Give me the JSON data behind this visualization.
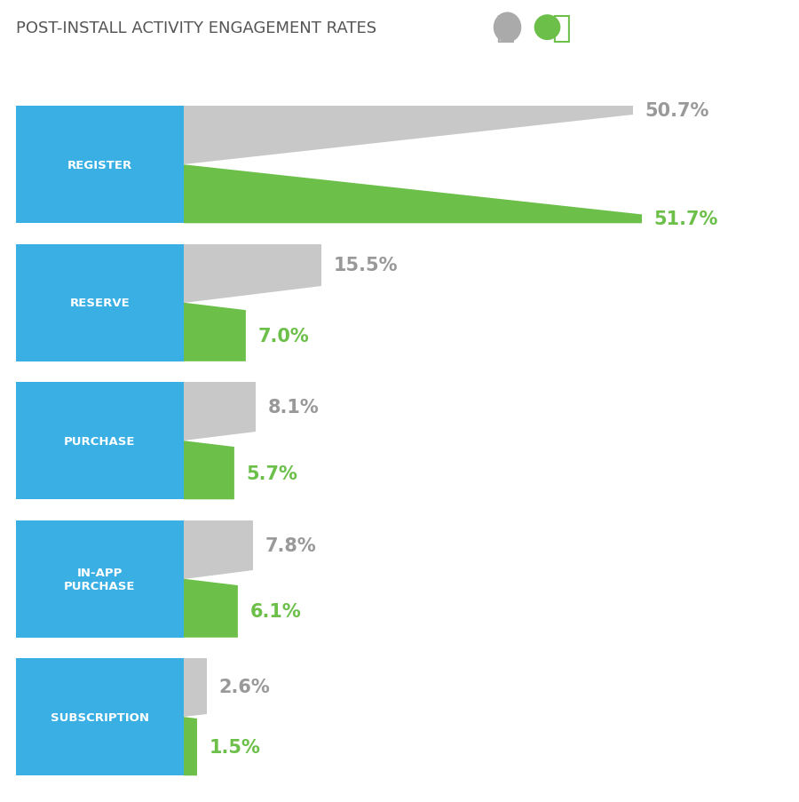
{
  "title": "POST-INSTALL ACTIVITY ENGAGEMENT RATES",
  "categories": [
    "REGISTER",
    "RESERVE",
    "PURCHASE",
    "IN-APP\nPURCHASE",
    "SUBSCRIPTION"
  ],
  "ios_values": [
    50.7,
    15.5,
    8.1,
    7.8,
    2.6
  ],
  "android_values": [
    51.7,
    7.0,
    5.7,
    6.1,
    1.5
  ],
  "ios_labels": [
    "50.7%",
    "15.5%",
    "8.1%",
    "7.8%",
    "2.6%"
  ],
  "android_labels": [
    "51.7%",
    "7.0%",
    "5.7%",
    "6.1%",
    "1.5%"
  ],
  "blue_color": "#3AAFE4",
  "gray_color": "#C8C8C8",
  "green_color": "#6CC04A",
  "gray_label_color": "#999999",
  "green_label_color": "#6CC04A",
  "white_color": "#FFFFFF",
  "background_color": "#FFFFFF",
  "bar_max": 55,
  "title_fontsize": 13,
  "value_fontsize": 15
}
